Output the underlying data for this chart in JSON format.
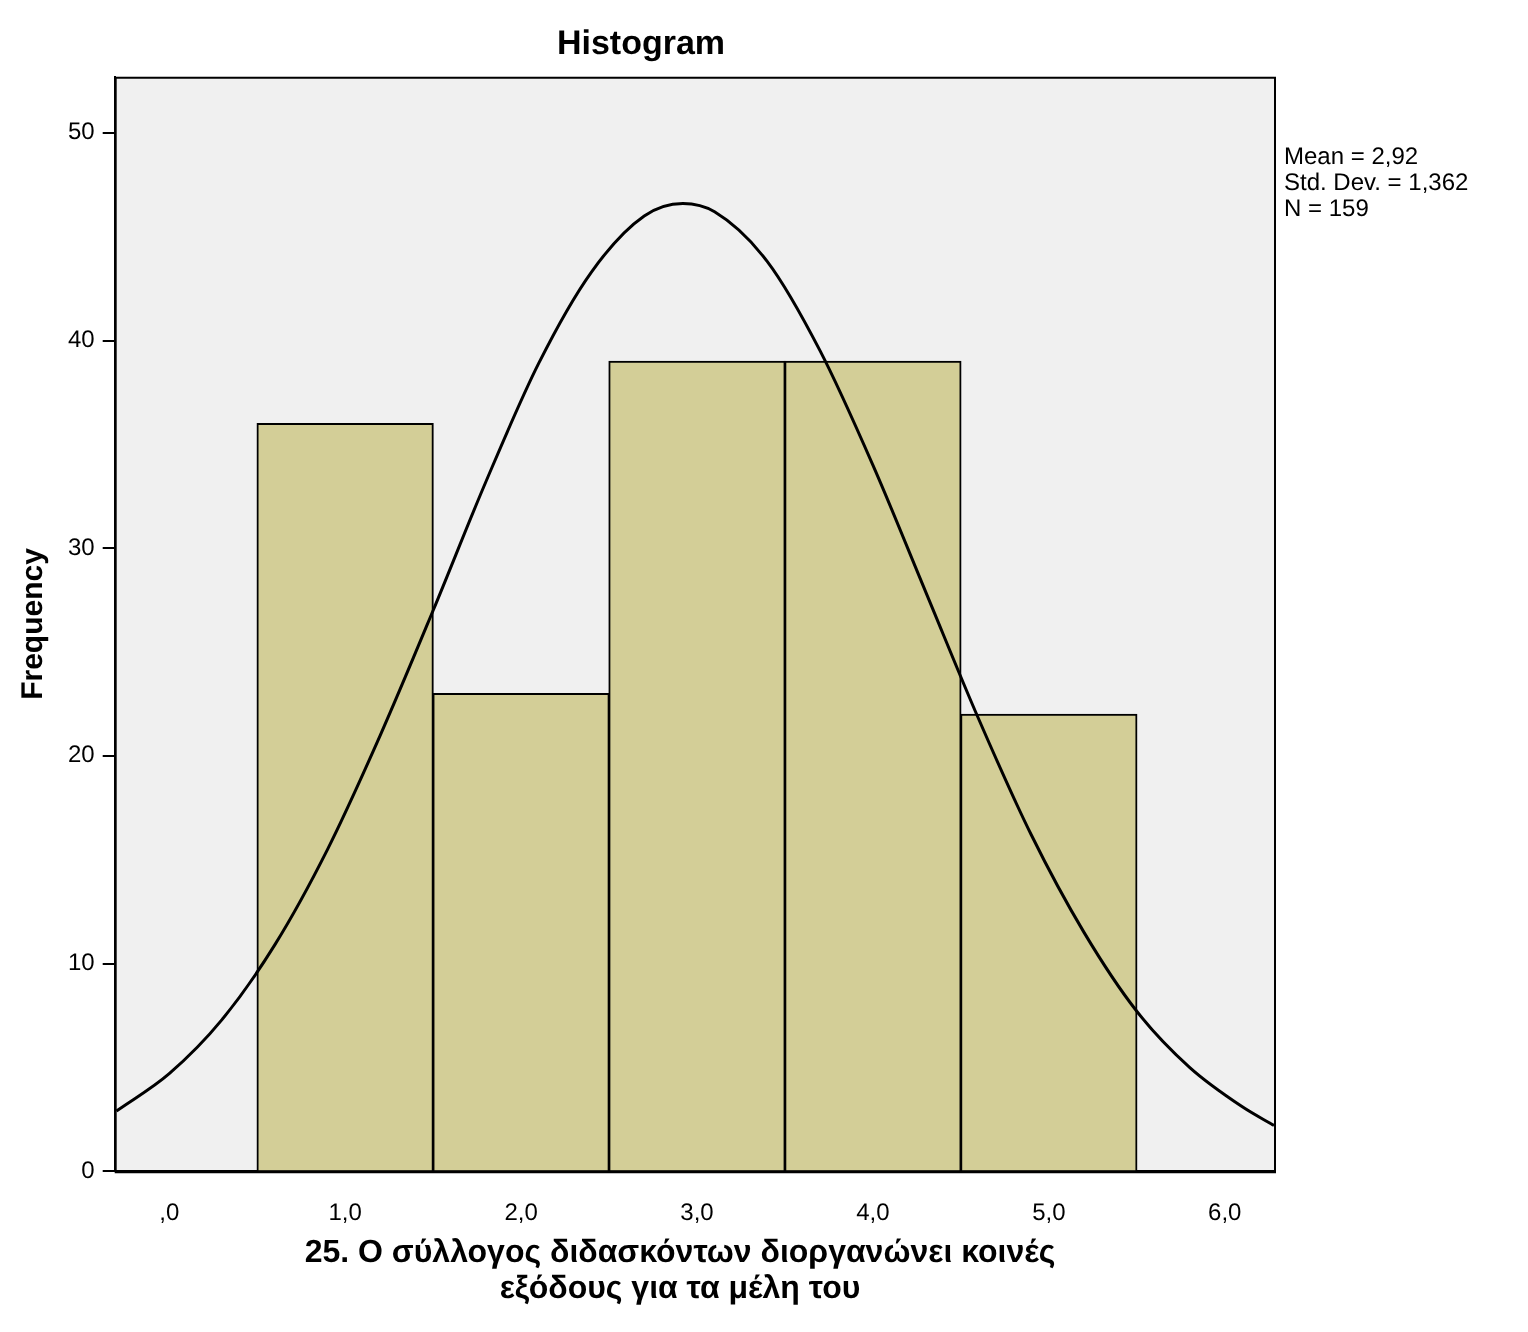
{
  "chart_data": {
    "type": "histogram",
    "title": "Histogram",
    "xlabel": "25. Ο σύλλογος διδασκόντων διοργανώνει κοινές εξόδους για τα μέλη του",
    "ylabel": "Frequency",
    "annotations": [
      "Mean = 2,92",
      "Std. Dev. = 1,362",
      "N = 159"
    ],
    "bins": [
      0.5,
      1.5,
      2.5,
      3.5,
      4.5,
      5.5
    ],
    "values": [
      36,
      23,
      39,
      39,
      22
    ],
    "color": "#d3ce97",
    "series": [
      {
        "type": "line",
        "color": "#000000",
        "x": [
          -0.3,
          0.0,
          0.3,
          0.6,
          0.9,
          1.2,
          1.5,
          1.8,
          2.1,
          2.4,
          2.7,
          2.92,
          3.1,
          3.4,
          3.7,
          4.0,
          4.3,
          4.6,
          4.9,
          5.2,
          5.5,
          5.8,
          6.1,
          6.28
        ],
        "values": [
          2.9,
          4.7,
          7.3,
          10.9,
          15.5,
          21.0,
          27.0,
          33.2,
          38.9,
          43.3,
          46.0,
          46.6,
          46.2,
          43.8,
          39.5,
          34.0,
          27.9,
          21.8,
          16.2,
          11.5,
          7.7,
          5.0,
          3.1,
          2.2
        ]
      }
    ],
    "xlim": [
      -0.31,
      6.28
    ],
    "xticks": [
      {
        "value": 0,
        "label": ",0"
      },
      {
        "value": 1,
        "label": "1,0"
      },
      {
        "value": 2,
        "label": "2,0"
      },
      {
        "value": 3,
        "label": "3,0"
      },
      {
        "value": 4,
        "label": "4,0"
      },
      {
        "value": 5,
        "label": "5,0"
      },
      {
        "value": 6,
        "label": "6,0"
      }
    ],
    "ylim": [
      0,
      52.7
    ],
    "yticks": [
      0,
      10,
      20,
      30,
      40,
      50
    ],
    "grid": false,
    "legend": false,
    "marker": "none",
    "line_style": "solid"
  }
}
